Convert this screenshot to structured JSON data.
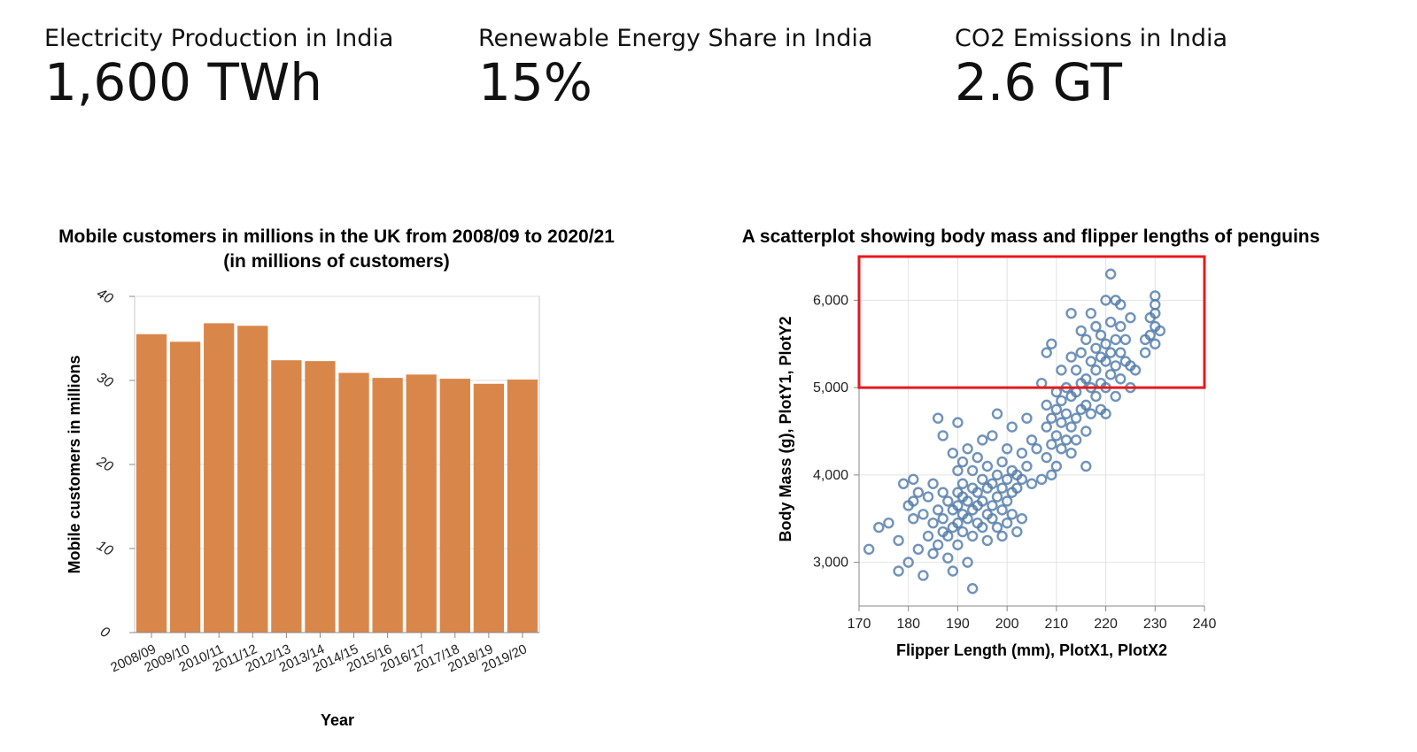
{
  "kpis": [
    {
      "label": "Electricity Production in India",
      "value": "1,600 TWh"
    },
    {
      "label": "Renewable Energy Share in India",
      "value": "15%"
    },
    {
      "label": "CO2 Emissions in India",
      "value": "2.6 GT"
    }
  ],
  "chart_data": [
    {
      "type": "bar",
      "title": "Mobile customers in millions in the UK from 2008/09 to 2020/21",
      "subtitle": "(in millions of customers)",
      "xlabel": "Year",
      "ylabel": "Mobile customers in millions",
      "categories": [
        "2008/09",
        "2009/10",
        "2010/11",
        "2011/12",
        "2012/13",
        "2013/14",
        "2014/15",
        "2015/16",
        "2016/17",
        "2017/18",
        "2018/19",
        "2019/20"
      ],
      "values": [
        35.5,
        34.6,
        36.8,
        36.5,
        32.4,
        32.3,
        30.9,
        30.3,
        30.7,
        30.2,
        29.6,
        30.1
      ],
      "ylim": [
        0,
        40
      ],
      "yticks": [
        0,
        10,
        20,
        30,
        40
      ],
      "grid": true,
      "bar_color": "#d9864a"
    },
    {
      "type": "scatter",
      "title": "A scatterplot showing body mass and flipper lengths of penguins",
      "xlabel": "Flipper Length (mm), PlotX1, PlotX2",
      "ylabel": "Body Mass (g), PlotY1, PlotY2",
      "xlim": [
        170,
        240
      ],
      "ylim": [
        2500,
        6500
      ],
      "xticks": [
        170,
        180,
        190,
        200,
        210,
        220,
        230,
        240
      ],
      "yticks": [
        3000,
        4000,
        5000,
        6000
      ],
      "ytick_labels": [
        "3,000",
        "4,000",
        "5,000",
        "6,000"
      ],
      "grid": true,
      "point_color": "#4c78a8",
      "highlight_region": {
        "x_range": [
          170,
          240
        ],
        "y_range": [
          5000,
          6500
        ],
        "color": "#e41a1c"
      },
      "points": [
        [
          172,
          3150
        ],
        [
          174,
          3400
        ],
        [
          176,
          3450
        ],
        [
          178,
          3250
        ],
        [
          178,
          2900
        ],
        [
          179,
          3900
        ],
        [
          180,
          3000
        ],
        [
          180,
          3650
        ],
        [
          181,
          3500
        ],
        [
          181,
          3700
        ],
        [
          181,
          3950
        ],
        [
          182,
          3150
        ],
        [
          182,
          3800
        ],
        [
          183,
          3550
        ],
        [
          183,
          2850
        ],
        [
          184,
          3300
        ],
        [
          184,
          3750
        ],
        [
          185,
          3450
        ],
        [
          185,
          3900
        ],
        [
          185,
          3100
        ],
        [
          186,
          3600
        ],
        [
          186,
          3200
        ],
        [
          186,
          4650
        ],
        [
          187,
          3350
        ],
        [
          187,
          3500
        ],
        [
          187,
          3800
        ],
        [
          187,
          4450
        ],
        [
          188,
          3050
        ],
        [
          188,
          3700
        ],
        [
          188,
          3300
        ],
        [
          189,
          3400
        ],
        [
          189,
          3600
        ],
        [
          189,
          4250
        ],
        [
          189,
          2900
        ],
        [
          190,
          3800
        ],
        [
          190,
          3450
        ],
        [
          190,
          3650
        ],
        [
          190,
          4050
        ],
        [
          190,
          3200
        ],
        [
          190,
          4600
        ],
        [
          191,
          3550
        ],
        [
          191,
          3900
        ],
        [
          191,
          3350
        ],
        [
          191,
          3750
        ],
        [
          191,
          4150
        ],
        [
          192,
          3500
        ],
        [
          192,
          3700
        ],
        [
          192,
          3000
        ],
        [
          192,
          4300
        ],
        [
          193,
          3600
        ],
        [
          193,
          3850
        ],
        [
          193,
          3300
        ],
        [
          193,
          4050
        ],
        [
          193,
          2700
        ],
        [
          194,
          3450
        ],
        [
          194,
          3800
        ],
        [
          194,
          3650
        ],
        [
          194,
          4200
        ],
        [
          195,
          3400
        ],
        [
          195,
          3700
        ],
        [
          195,
          3950
        ],
        [
          195,
          4400
        ],
        [
          196,
          3550
        ],
        [
          196,
          3850
        ],
        [
          196,
          4100
        ],
        [
          196,
          3250
        ],
        [
          197,
          3650
        ],
        [
          197,
          3900
        ],
        [
          197,
          4450
        ],
        [
          197,
          3500
        ],
        [
          198,
          3750
        ],
        [
          198,
          3400
        ],
        [
          198,
          4000
        ],
        [
          198,
          4700
        ],
        [
          199,
          3600
        ],
        [
          199,
          3850
        ],
        [
          199,
          4150
        ],
        [
          199,
          3300
        ],
        [
          200,
          3700
        ],
        [
          200,
          3950
        ],
        [
          200,
          4300
        ],
        [
          200,
          3450
        ],
        [
          201,
          3800
        ],
        [
          201,
          4050
        ],
        [
          201,
          3550
        ],
        [
          201,
          4550
        ],
        [
          202,
          3850
        ],
        [
          202,
          4000
        ],
        [
          202,
          3350
        ],
        [
          203,
          3950
        ],
        [
          203,
          3500
        ],
        [
          203,
          4250
        ],
        [
          204,
          4100
        ],
        [
          204,
          4650
        ],
        [
          205,
          3900
        ],
        [
          205,
          4400
        ],
        [
          206,
          4300
        ],
        [
          207,
          3950
        ],
        [
          207,
          5050
        ],
        [
          208,
          4200
        ],
        [
          208,
          4550
        ],
        [
          208,
          4800
        ],
        [
          208,
          5400
        ],
        [
          209,
          4000
        ],
        [
          209,
          4350
        ],
        [
          209,
          4650
        ],
        [
          209,
          5500
        ],
        [
          210,
          4100
        ],
        [
          210,
          4450
        ],
        [
          210,
          4750
        ],
        [
          210,
          4950
        ],
        [
          211,
          4300
        ],
        [
          211,
          4600
        ],
        [
          211,
          4850
        ],
        [
          211,
          5200
        ],
        [
          212,
          4400
        ],
        [
          212,
          4700
        ],
        [
          212,
          5000
        ],
        [
          213,
          4250
        ],
        [
          213,
          4550
        ],
        [
          213,
          4900
        ],
        [
          213,
          5350
        ],
        [
          213,
          5850
        ],
        [
          214,
          4650
        ],
        [
          214,
          4950
        ],
        [
          214,
          5200
        ],
        [
          214,
          4400
        ],
        [
          215,
          4750
        ],
        [
          215,
          5050
        ],
        [
          215,
          5400
        ],
        [
          215,
          5650
        ],
        [
          216,
          4500
        ],
        [
          216,
          4800
        ],
        [
          216,
          5100
        ],
        [
          216,
          5550
        ],
        [
          216,
          4100
        ],
        [
          217,
          4700
        ],
        [
          217,
          5000
        ],
        [
          217,
          5300
        ],
        [
          217,
          5850
        ],
        [
          218,
          4900
        ],
        [
          218,
          5200
        ],
        [
          218,
          5450
        ],
        [
          218,
          5700
        ],
        [
          219,
          4750
        ],
        [
          219,
          5050
        ],
        [
          219,
          5350
        ],
        [
          219,
          5600
        ],
        [
          220,
          5000
        ],
        [
          220,
          5300
        ],
        [
          220,
          5500
        ],
        [
          220,
          6000
        ],
        [
          220,
          4700
        ],
        [
          221,
          5150
        ],
        [
          221,
          5400
        ],
        [
          221,
          5750
        ],
        [
          221,
          6300
        ],
        [
          222,
          4900
        ],
        [
          222,
          5250
        ],
        [
          222,
          5550
        ],
        [
          222,
          6000
        ],
        [
          223,
          5100
        ],
        [
          223,
          5400
        ],
        [
          223,
          5700
        ],
        [
          223,
          5950
        ],
        [
          224,
          5300
        ],
        [
          224,
          5550
        ],
        [
          225,
          5000
        ],
        [
          225,
          5250
        ],
        [
          225,
          5800
        ],
        [
          226,
          5200
        ],
        [
          228,
          5400
        ],
        [
          228,
          5550
        ],
        [
          229,
          5600
        ],
        [
          229,
          5800
        ],
        [
          230,
          5700
        ],
        [
          230,
          5500
        ],
        [
          230,
          5850
        ],
        [
          230,
          6050
        ],
        [
          230,
          5950
        ],
        [
          231,
          5650
        ]
      ]
    }
  ]
}
